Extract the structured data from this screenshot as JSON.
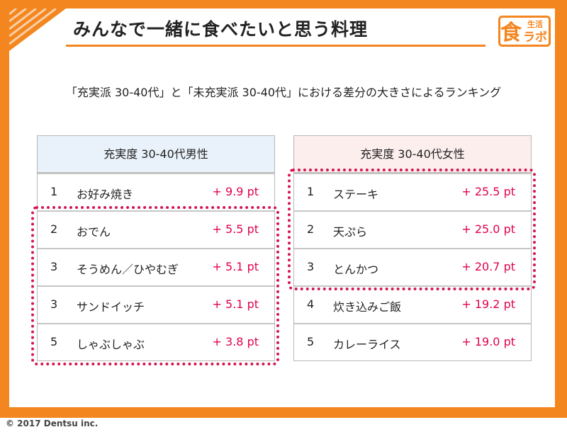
{
  "header": {
    "title": "みんなで一緒に食べたいと思う料理",
    "logo_small": "生活",
    "logo_main": "食",
    "logo_kana": "ラボ"
  },
  "subtitle": "「充実派 30-40代」と「未充実派 30-40代」における差分の大きさによるランキング",
  "tables": {
    "male": {
      "title": "充実度 30-40代男性",
      "rows": [
        {
          "rank": "1",
          "dish": "お好み焼き",
          "diff": "+ 9.9 pt"
        },
        {
          "rank": "2",
          "dish": "おでん",
          "diff": "+ 5.5 pt"
        },
        {
          "rank": "3",
          "dish": "そうめん／ひやむぎ",
          "diff": "+ 5.1 pt"
        },
        {
          "rank": "3",
          "dish": "サンドイッチ",
          "diff": "+ 5.1 pt"
        },
        {
          "rank": "5",
          "dish": "しゃぶしゃぶ",
          "diff": "+ 3.8 pt"
        }
      ]
    },
    "female": {
      "title": "充実度 30-40代女性",
      "rows": [
        {
          "rank": "1",
          "dish": "ステーキ",
          "diff": "+ 25.5 pt"
        },
        {
          "rank": "2",
          "dish": "天ぷら",
          "diff": "+ 25.0 pt"
        },
        {
          "rank": "3",
          "dish": "とんかつ",
          "diff": "+ 20.7 pt"
        },
        {
          "rank": "4",
          "dish": "炊き込みご飯",
          "diff": "+ 19.2 pt"
        },
        {
          "rank": "5",
          "dish": "カレーライス",
          "diff": "+ 19.0 pt"
        }
      ]
    }
  },
  "footer": {
    "copyright": "© 2017 Dentsu inc."
  },
  "colors": {
    "frame": "#f4861f",
    "highlight": "#d4154f",
    "diff_text": "#e0004e",
    "male_header": "#e9f2fa",
    "female_header": "#fdeeee"
  }
}
